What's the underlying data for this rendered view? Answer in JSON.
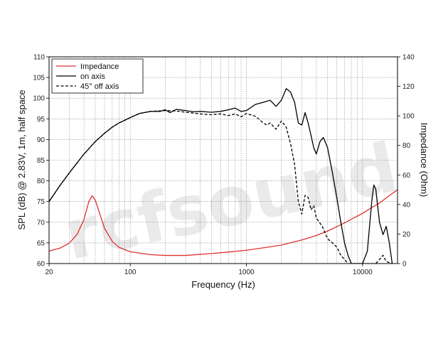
{
  "watermark": "rcfsound",
  "chart_data": {
    "type": "line",
    "xlabel": "Frequency (Hz)",
    "ylabel": "SPL (dB) @ 2.83V, 1m, half space",
    "y2label": "Impedance (Ohm)",
    "x_scale": "log",
    "xlim": [
      20,
      20000
    ],
    "ylim": [
      60,
      110
    ],
    "y2lim": [
      0,
      140
    ],
    "grid": true,
    "legend_position": "top-left",
    "x_tick_labels": [
      "20",
      "100",
      "1000",
      "10000"
    ],
    "x_tick_values": [
      20,
      100,
      1000,
      10000
    ],
    "y_ticks": [
      60,
      65,
      70,
      75,
      80,
      85,
      90,
      95,
      100,
      105,
      110
    ],
    "y2_ticks": [
      0,
      20,
      40,
      60,
      80,
      100,
      120,
      140
    ],
    "series": [
      {
        "name": "Impedance",
        "axis": "right",
        "color": "#e03030",
        "dash": "solid",
        "points": [
          [
            20,
            8.5
          ],
          [
            25,
            10.5
          ],
          [
            30,
            14
          ],
          [
            35,
            20
          ],
          [
            40,
            30
          ],
          [
            44,
            42
          ],
          [
            47,
            46
          ],
          [
            50,
            43
          ],
          [
            55,
            33
          ],
          [
            60,
            24
          ],
          [
            70,
            15
          ],
          [
            80,
            11
          ],
          [
            100,
            8
          ],
          [
            150,
            6
          ],
          [
            200,
            5.5
          ],
          [
            300,
            5.5
          ],
          [
            500,
            6.8
          ],
          [
            700,
            7.8
          ],
          [
            1000,
            9
          ],
          [
            1500,
            11
          ],
          [
            2000,
            12.5
          ],
          [
            3000,
            16
          ],
          [
            4000,
            19
          ],
          [
            5000,
            22
          ],
          [
            6000,
            25
          ],
          [
            7000,
            27.5
          ],
          [
            8000,
            30
          ],
          [
            10000,
            34
          ],
          [
            12000,
            38
          ],
          [
            14000,
            41
          ],
          [
            17000,
            46
          ],
          [
            20000,
            50
          ]
        ]
      },
      {
        "name": "on axis",
        "axis": "left",
        "color": "#000000",
        "dash": "solid",
        "points": [
          [
            20,
            75
          ],
          [
            25,
            79
          ],
          [
            30,
            82
          ],
          [
            40,
            86.5
          ],
          [
            50,
            89.5
          ],
          [
            60,
            91.5
          ],
          [
            70,
            93
          ],
          [
            80,
            94
          ],
          [
            100,
            95.3
          ],
          [
            120,
            96.3
          ],
          [
            150,
            96.8
          ],
          [
            180,
            96.8
          ],
          [
            200,
            97.2
          ],
          [
            220,
            96.5
          ],
          [
            250,
            97.3
          ],
          [
            300,
            97
          ],
          [
            350,
            96.7
          ],
          [
            400,
            96.8
          ],
          [
            500,
            96.6
          ],
          [
            600,
            96.8
          ],
          [
            700,
            97.2
          ],
          [
            800,
            97.6
          ],
          [
            900,
            96.8
          ],
          [
            1000,
            97
          ],
          [
            1100,
            97.8
          ],
          [
            1200,
            98.5
          ],
          [
            1400,
            99
          ],
          [
            1600,
            99.5
          ],
          [
            1800,
            98
          ],
          [
            2000,
            99.5
          ],
          [
            2200,
            102.3
          ],
          [
            2400,
            101.5
          ],
          [
            2600,
            99
          ],
          [
            2800,
            94
          ],
          [
            3000,
            93.5
          ],
          [
            3200,
            96.5
          ],
          [
            3400,
            94
          ],
          [
            3600,
            91
          ],
          [
            3800,
            88
          ],
          [
            4000,
            86.5
          ],
          [
            4300,
            89.5
          ],
          [
            4600,
            90.5
          ],
          [
            5000,
            88
          ],
          [
            5500,
            82
          ],
          [
            6000,
            76
          ],
          [
            6500,
            70
          ],
          [
            7000,
            65
          ],
          [
            7500,
            62
          ],
          [
            8000,
            60
          ],
          [
            9000,
            60
          ],
          [
            10000,
            60
          ],
          [
            11000,
            63
          ],
          [
            12000,
            75
          ],
          [
            12500,
            79
          ],
          [
            13000,
            78
          ],
          [
            14000,
            70
          ],
          [
            15000,
            67
          ],
          [
            16000,
            69
          ],
          [
            17000,
            65
          ],
          [
            18000,
            60
          ]
        ]
      },
      {
        "name": "45° off axis",
        "axis": "left",
        "color": "#000000",
        "dash": "dashed",
        "points": [
          [
            20,
            75
          ],
          [
            25,
            79
          ],
          [
            30,
            82
          ],
          [
            40,
            86.5
          ],
          [
            50,
            89.5
          ],
          [
            60,
            91.5
          ],
          [
            70,
            93
          ],
          [
            80,
            94
          ],
          [
            100,
            95.3
          ],
          [
            120,
            96.3
          ],
          [
            150,
            96.8
          ],
          [
            200,
            97
          ],
          [
            250,
            96.9
          ],
          [
            300,
            96.6
          ],
          [
            400,
            96.2
          ],
          [
            500,
            96
          ],
          [
            600,
            96.2
          ],
          [
            700,
            95.8
          ],
          [
            800,
            96.2
          ],
          [
            900,
            95.5
          ],
          [
            1000,
            96.3
          ],
          [
            1200,
            95.6
          ],
          [
            1400,
            94
          ],
          [
            1500,
            93.5
          ],
          [
            1600,
            94
          ],
          [
            1800,
            92.5
          ],
          [
            2000,
            94.5
          ],
          [
            2200,
            93
          ],
          [
            2400,
            89
          ],
          [
            2600,
            84
          ],
          [
            2800,
            75
          ],
          [
            3000,
            72
          ],
          [
            3200,
            76.5
          ],
          [
            3400,
            76
          ],
          [
            3600,
            73
          ],
          [
            3800,
            74
          ],
          [
            4000,
            71
          ],
          [
            4500,
            69
          ],
          [
            5000,
            66
          ],
          [
            5500,
            65
          ],
          [
            6000,
            64
          ],
          [
            6500,
            62
          ],
          [
            7000,
            61
          ],
          [
            7500,
            60
          ],
          [
            13000,
            60
          ],
          [
            14000,
            61
          ],
          [
            15000,
            62
          ],
          [
            16000,
            60.5
          ],
          [
            18000,
            60
          ]
        ]
      }
    ]
  }
}
